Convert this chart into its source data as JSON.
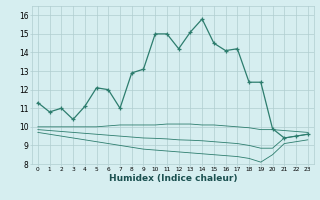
{
  "x": [
    0,
    1,
    2,
    3,
    4,
    5,
    6,
    7,
    8,
    9,
    10,
    11,
    12,
    13,
    14,
    15,
    16,
    17,
    18,
    19,
    20,
    21,
    22,
    23
  ],
  "main_line": [
    11.3,
    10.8,
    11.0,
    10.4,
    11.1,
    12.1,
    12.0,
    11.0,
    12.9,
    13.1,
    15.0,
    15.0,
    14.2,
    15.1,
    15.8,
    14.5,
    14.1,
    14.2,
    12.4,
    12.4,
    9.9,
    9.4,
    9.5,
    9.6
  ],
  "line_flat": [
    10.0,
    10.0,
    10.0,
    10.0,
    10.0,
    10.0,
    10.05,
    10.1,
    10.1,
    10.1,
    10.1,
    10.15,
    10.15,
    10.15,
    10.1,
    10.1,
    10.05,
    10.0,
    9.95,
    9.85,
    9.85,
    9.8,
    9.75,
    9.7
  ],
  "line_mid": [
    9.85,
    9.8,
    9.75,
    9.7,
    9.65,
    9.6,
    9.55,
    9.5,
    9.45,
    9.4,
    9.38,
    9.35,
    9.3,
    9.28,
    9.25,
    9.2,
    9.15,
    9.1,
    9.0,
    8.85,
    8.85,
    9.4,
    9.5,
    9.6
  ],
  "line_bot": [
    9.7,
    9.6,
    9.5,
    9.4,
    9.3,
    9.2,
    9.1,
    9.0,
    8.9,
    8.8,
    8.75,
    8.7,
    8.65,
    8.6,
    8.55,
    8.5,
    8.45,
    8.4,
    8.3,
    8.1,
    8.5,
    9.1,
    9.2,
    9.3
  ],
  "color": "#2d7d6e",
  "bg_color": "#d6eef0",
  "grid_color": "#b0cdd0",
  "ylim": [
    8,
    16.5
  ],
  "xlim": [
    -0.5,
    23.5
  ],
  "yticks": [
    8,
    9,
    10,
    11,
    12,
    13,
    14,
    15,
    16
  ],
  "xticks": [
    0,
    1,
    2,
    3,
    4,
    5,
    6,
    7,
    8,
    9,
    10,
    11,
    12,
    13,
    14,
    15,
    16,
    17,
    18,
    19,
    20,
    21,
    22,
    23
  ],
  "xlabel": "Humidex (Indice chaleur)"
}
